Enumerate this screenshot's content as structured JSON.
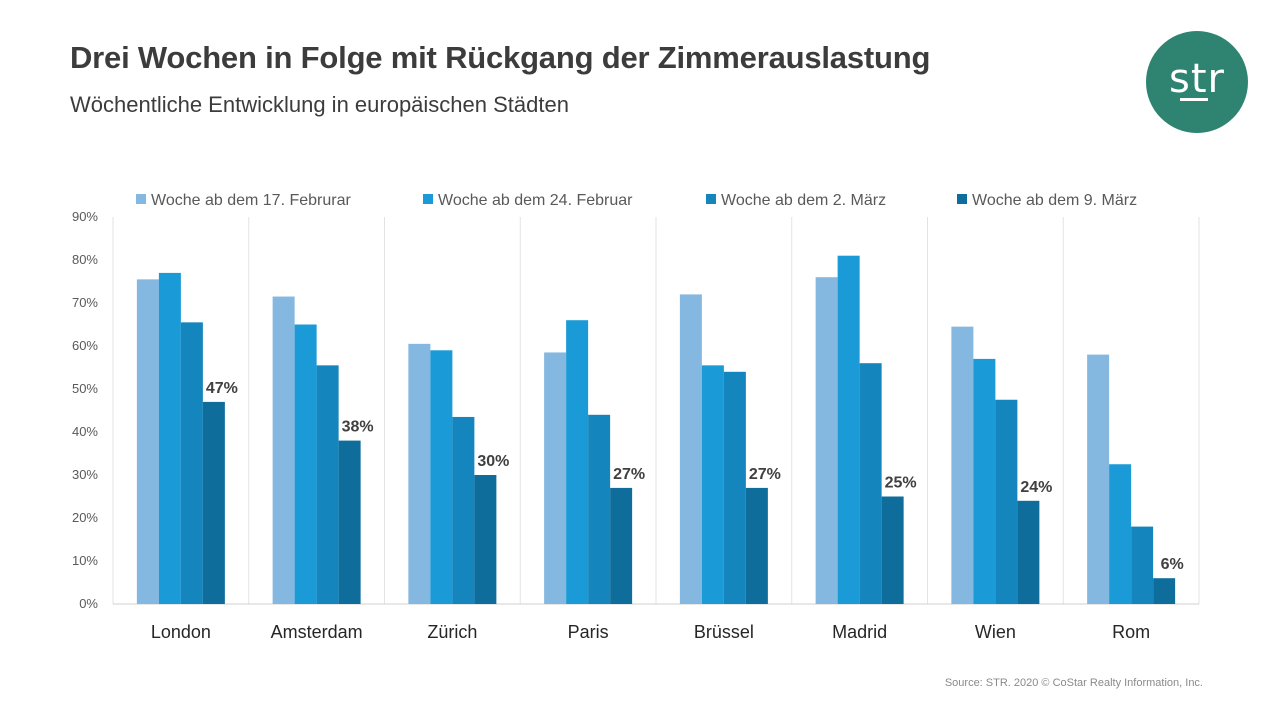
{
  "header": {
    "title": "Drei Wochen in Folge mit Rückgang der Zimmerauslastung",
    "subtitle": "Wöchentliche Entwicklung in europäischen Städten"
  },
  "logo": {
    "text": "str",
    "color": "#2e8471"
  },
  "footer": {
    "source": "Source: STR. 2020 © CoStar Realty Information, Inc."
  },
  "chart_data": {
    "type": "bar",
    "categories": [
      "London",
      "Amsterdam",
      "Zürich",
      "Paris",
      "Brüssel",
      "Madrid",
      "Wien",
      "Rom"
    ],
    "series": [
      {
        "name": "Woche ab dem 17. Februrar",
        "color": "#85b8e0",
        "values": [
          75.5,
          71.5,
          60.5,
          58.5,
          72,
          76,
          64.5,
          58
        ]
      },
      {
        "name": "Woche ab dem 24. Februar",
        "color": "#1a9ad6",
        "values": [
          77,
          65,
          59,
          66,
          55.5,
          81,
          57,
          32.5
        ]
      },
      {
        "name": "Woche ab dem 2. März",
        "color": "#1585bd",
        "values": [
          65.5,
          55.5,
          43.5,
          44,
          54,
          56,
          47.5,
          18
        ]
      },
      {
        "name": "Woche ab dem 9. März",
        "color": "#0f6d9c",
        "values": [
          47,
          38,
          30,
          27,
          27,
          25,
          24,
          6
        ]
      }
    ],
    "data_labels": [
      "47%",
      "38%",
      "30%",
      "27%",
      "27%",
      "25%",
      "24%",
      "6%"
    ],
    "y_ticks": [
      "0%",
      "10%",
      "20%",
      "30%",
      "40%",
      "50%",
      "60%",
      "70%",
      "80%",
      "90%"
    ],
    "ylim": [
      0,
      90
    ],
    "legend_position": "top",
    "grid": "vertical separators"
  }
}
